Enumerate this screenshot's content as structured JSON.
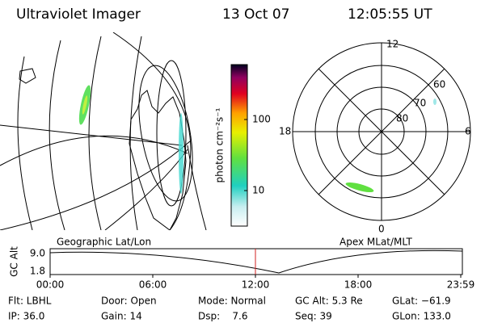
{
  "header": {
    "title": "Ultraviolet Imager",
    "date": "13 Oct 07",
    "time": "12:05:55 UT"
  },
  "colorbar": {
    "unit": "photon cm⁻²s⁻¹",
    "ticks": [
      "100",
      "10"
    ]
  },
  "polar": {
    "hours": [
      "12",
      "18",
      "6",
      "0"
    ],
    "latitudes": [
      "60",
      "70",
      "80"
    ]
  },
  "altitude_plot": {
    "left_label": "Geographic Lat/Lon",
    "right_label": "Apex MLat/MLT",
    "y_label": "GC Alt",
    "yticks": [
      "9.0",
      "1.8"
    ],
    "xticks": [
      "00:00",
      "06:00",
      "12:00",
      "18:00",
      "23:59"
    ]
  },
  "footer": {
    "rows": [
      [
        "Flt: LBHL",
        "Door: Open",
        "Mode: Normal",
        "GC Alt: 5.3 Re",
        "GLat: −61.9"
      ],
      [
        "IP: 36.0",
        "Gain: 14",
        "Dsp:    7.6",
        "Seq: 39",
        "GLon: 133.0"
      ]
    ]
  }
}
